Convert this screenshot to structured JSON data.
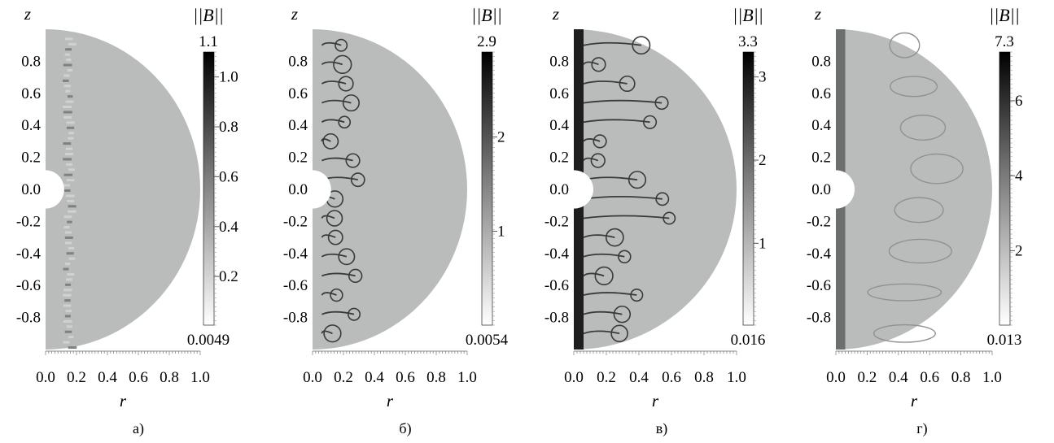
{
  "chart_data": [
    {
      "type": "heatmap",
      "panel_label": "а)",
      "xlabel": "r",
      "ylabel": "z",
      "xlim": [
        0.0,
        1.0
      ],
      "ylim": [
        -1.0,
        1.0
      ],
      "x_ticks": [
        "0.0",
        "0.2",
        "0.4",
        "0.6",
        "0.8",
        "1.0"
      ],
      "y_ticks": [
        "0.8",
        "0.6",
        "0.4",
        "0.2",
        "0.0",
        "-0.2",
        "-0.4",
        "-0.6",
        "-0.8"
      ],
      "colorbar": {
        "title": "||B||",
        "max_label": "1.1",
        "min_label": "0.0049",
        "ticks": [
          "1.0",
          "0.8",
          "0.6",
          "0.4",
          "0.2"
        ],
        "tick_values": [
          1.0,
          0.8,
          0.6,
          0.4,
          0.2
        ],
        "vmin": 0.0049,
        "vmax": 1.1,
        "colormap": "white-to-black"
      },
      "field_level": 0.6,
      "features": "thin perturbed layer near r=0.15, uniform field elsewhere"
    },
    {
      "type": "heatmap",
      "panel_label": "б)",
      "xlabel": "r",
      "ylabel": "z",
      "xlim": [
        0.0,
        1.0
      ],
      "ylim": [
        -1.0,
        1.0
      ],
      "x_ticks": [
        "0.0",
        "0.2",
        "0.4",
        "0.6",
        "0.8",
        "1.0"
      ],
      "y_ticks": [
        "0.8",
        "0.6",
        "0.4",
        "0.2",
        "0.0",
        "-0.2",
        "-0.4",
        "-0.6",
        "-0.8"
      ],
      "colorbar": {
        "title": "||B||",
        "max_label": "2.9",
        "min_label": "0.0054",
        "ticks": [
          "2",
          "1"
        ],
        "tick_values": [
          2,
          1
        ],
        "vmin": 0.0054,
        "vmax": 2.9,
        "colormap": "white-to-black"
      },
      "field_level": 0.9,
      "features": "mushroom-shaped plumes extending to r≈0.35"
    },
    {
      "type": "heatmap",
      "panel_label": "в)",
      "xlabel": "r",
      "ylabel": "z",
      "xlim": [
        0.0,
        1.0
      ],
      "ylim": [
        -1.0,
        1.0
      ],
      "x_ticks": [
        "0.0",
        "0.2",
        "0.4",
        "0.6",
        "0.8",
        "1.0"
      ],
      "y_ticks": [
        "0.8",
        "0.6",
        "0.4",
        "0.2",
        "0.0",
        "-0.2",
        "-0.4",
        "-0.6",
        "-0.8"
      ],
      "colorbar": {
        "title": "||B||",
        "max_label": "3.3",
        "min_label": "0.016",
        "ticks": [
          "3",
          "2",
          "1"
        ],
        "tick_values": [
          3,
          2,
          1
        ],
        "vmin": 0.016,
        "vmax": 3.3,
        "colormap": "white-to-black"
      },
      "field_level": 1.0,
      "features": "plumes extending to r≈0.65, dark band near axis"
    },
    {
      "type": "heatmap",
      "panel_label": "г)",
      "xlabel": "r",
      "ylabel": "z",
      "xlim": [
        0.0,
        1.0
      ],
      "ylim": [
        -1.0,
        1.0
      ],
      "x_ticks": [
        "0.0",
        "0.2",
        "0.4",
        "0.6",
        "0.8",
        "1.0"
      ],
      "y_ticks": [
        "0.8",
        "0.6",
        "0.4",
        "0.2",
        "0.0",
        "-0.2",
        "-0.4",
        "-0.6",
        "-0.8"
      ],
      "colorbar": {
        "title": "||B||",
        "max_label": "7.3",
        "min_label": "0.013",
        "ticks": [
          "6",
          "4",
          "2"
        ],
        "tick_values": [
          6,
          4,
          2
        ],
        "vmin": 0.013,
        "vmax": 7.3,
        "colormap": "white-to-black"
      },
      "field_level": 1.4,
      "features": "large swirling eddies filling the half-disk, dark band near axis"
    }
  ]
}
